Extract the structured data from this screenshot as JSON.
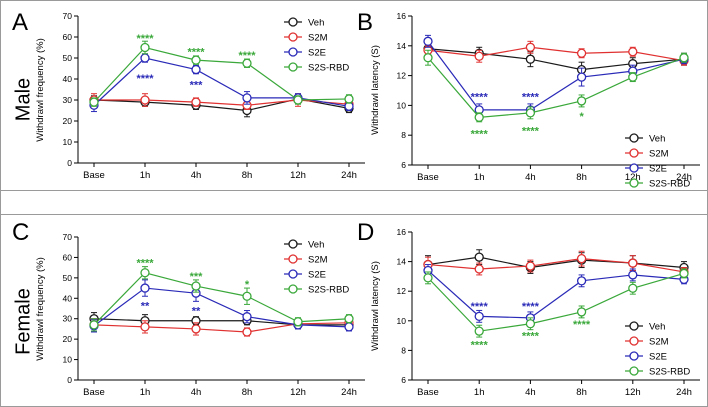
{
  "rows": [
    "Male",
    "Female"
  ],
  "chart_data": [
    {
      "panel": "A",
      "type": "line",
      "categories": [
        "Base",
        "1h",
        "4h",
        "8h",
        "12h",
        "24h"
      ],
      "ylabel": "Withdrawl frequency (%)",
      "ylim": [
        0,
        70
      ],
      "yticks": [
        0,
        10,
        20,
        30,
        40,
        50,
        60,
        70
      ],
      "legend_position": "top-right",
      "series": [
        {
          "name": "Veh",
          "color": "#1a1a1a",
          "values": [
            30,
            29,
            27.5,
            25,
            30.5,
            26
          ],
          "errors": [
            2,
            2,
            2,
            3,
            2,
            2
          ]
        },
        {
          "name": "S2M",
          "color": "#e03030",
          "values": [
            30,
            30,
            29,
            27.5,
            30,
            28
          ],
          "errors": [
            3,
            3,
            2,
            2,
            3,
            2
          ]
        },
        {
          "name": "S2E",
          "color": "#2a2ab8",
          "values": [
            27.5,
            50,
            44.5,
            31,
            31,
            27
          ],
          "errors": [
            3,
            2,
            2,
            3,
            2,
            2
          ]
        },
        {
          "name": "S2S-RBD",
          "color": "#3aa83a",
          "values": [
            29,
            55,
            49,
            47.5,
            30,
            30.5
          ],
          "errors": [
            2,
            3,
            2,
            2,
            2,
            2
          ]
        }
      ],
      "annotations": [
        {
          "text": "****",
          "cat": "1h",
          "value": 59.5,
          "series": "S2S-RBD"
        },
        {
          "text": "****",
          "cat": "1h",
          "value": 40.5,
          "series": "S2E"
        },
        {
          "text": "****",
          "cat": "4h",
          "value": 53,
          "series": "S2S-RBD"
        },
        {
          "text": "***",
          "cat": "4h",
          "value": 37.5,
          "series": "S2E"
        },
        {
          "text": "****",
          "cat": "8h",
          "value": 51.5,
          "series": "S2S-RBD"
        }
      ]
    },
    {
      "panel": "B",
      "type": "line",
      "categories": [
        "Base",
        "1h",
        "4h",
        "8h",
        "12h",
        "24h"
      ],
      "ylabel": "Withdrawl latency (S)",
      "ylim": [
        6,
        16
      ],
      "yticks": [
        6,
        8,
        10,
        12,
        14,
        16
      ],
      "legend_position": "bottom-right",
      "series": [
        {
          "name": "Veh",
          "color": "#1a1a1a",
          "values": [
            13.8,
            13.5,
            13.1,
            12.4,
            12.8,
            13.1
          ],
          "errors": [
            0.3,
            0.4,
            0.5,
            0.5,
            0.4,
            0.4
          ]
        },
        {
          "name": "S2M",
          "color": "#e03030",
          "values": [
            13.7,
            13.3,
            13.9,
            13.5,
            13.6,
            13.0
          ],
          "errors": [
            0.3,
            0.4,
            0.4,
            0.3,
            0.3,
            0.3
          ]
        },
        {
          "name": "S2E",
          "color": "#2a2ab8",
          "values": [
            14.3,
            9.7,
            9.7,
            11.9,
            12.3,
            13.1
          ],
          "errors": [
            0.4,
            0.4,
            0.4,
            0.6,
            0.4,
            0.3
          ]
        },
        {
          "name": "S2S-RBD",
          "color": "#3aa83a",
          "values": [
            13.2,
            9.2,
            9.5,
            10.3,
            11.9,
            13.2
          ],
          "errors": [
            0.5,
            0.3,
            0.4,
            0.4,
            0.3,
            0.3
          ]
        }
      ],
      "annotations": [
        {
          "text": "****",
          "cat": "1h",
          "value": 10.6,
          "series": "S2E"
        },
        {
          "text": "****",
          "cat": "1h",
          "value": 8.1,
          "series": "S2S-RBD"
        },
        {
          "text": "****",
          "cat": "4h",
          "value": 10.6,
          "series": "S2E"
        },
        {
          "text": "****",
          "cat": "4h",
          "value": 8.3,
          "series": "S2S-RBD"
        },
        {
          "text": "*",
          "cat": "8h",
          "value": 9.3,
          "series": "S2S-RBD"
        }
      ]
    },
    {
      "panel": "C",
      "type": "line",
      "categories": [
        "Base",
        "1h",
        "4h",
        "8h",
        "12h",
        "24h"
      ],
      "ylabel": "Withdrawl frequency (%)",
      "ylim": [
        0,
        70
      ],
      "yticks": [
        0,
        10,
        20,
        30,
        40,
        50,
        60,
        70
      ],
      "legend_position": "top-right",
      "series": [
        {
          "name": "Veh",
          "color": "#1a1a1a",
          "values": [
            30,
            29,
            29,
            29,
            27,
            27
          ],
          "errors": [
            3,
            3,
            2,
            2,
            2,
            2
          ]
        },
        {
          "name": "S2M",
          "color": "#e03030",
          "values": [
            27,
            26,
            25,
            23.5,
            27.5,
            28
          ],
          "errors": [
            3,
            3,
            3,
            2,
            2,
            2
          ]
        },
        {
          "name": "S2E",
          "color": "#2a2ab8",
          "values": [
            26.5,
            45,
            42.5,
            31,
            27,
            26
          ],
          "errors": [
            3,
            4,
            4,
            3,
            2,
            2
          ]
        },
        {
          "name": "S2S-RBD",
          "color": "#3aa83a",
          "values": [
            27,
            52.5,
            46,
            41,
            28.5,
            30
          ],
          "errors": [
            3,
            3,
            3,
            4,
            2,
            2
          ]
        }
      ],
      "annotations": [
        {
          "text": "****",
          "cat": "1h",
          "value": 57.5,
          "series": "S2S-RBD"
        },
        {
          "text": "**",
          "cat": "1h",
          "value": 36.5,
          "series": "S2E"
        },
        {
          "text": "***",
          "cat": "4h",
          "value": 51,
          "series": "S2S-RBD"
        },
        {
          "text": "**",
          "cat": "4h",
          "value": 34,
          "series": "S2E"
        },
        {
          "text": "*",
          "cat": "8h",
          "value": 47,
          "series": "S2S-RBD"
        }
      ]
    },
    {
      "panel": "D",
      "type": "line",
      "categories": [
        "Base",
        "1h",
        "4h",
        "8h",
        "12h",
        "24h"
      ],
      "ylabel": "Withdrawl latency (S)",
      "ylim": [
        6,
        16
      ],
      "yticks": [
        6,
        8,
        10,
        12,
        14,
        16
      ],
      "legend_position": "bottom-right",
      "series": [
        {
          "name": "Veh",
          "color": "#1a1a1a",
          "values": [
            13.8,
            14.3,
            13.6,
            14.1,
            13.9,
            13.6
          ],
          "errors": [
            0.6,
            0.5,
            0.4,
            0.5,
            0.5,
            0.4
          ]
        },
        {
          "name": "S2M",
          "color": "#e03030",
          "values": [
            13.8,
            13.5,
            13.7,
            14.2,
            13.9,
            13.3
          ],
          "errors": [
            0.5,
            0.4,
            0.4,
            0.5,
            0.5,
            0.3
          ]
        },
        {
          "name": "S2E",
          "color": "#2a2ab8",
          "values": [
            13.4,
            10.3,
            10.2,
            12.7,
            13.1,
            12.8
          ],
          "errors": [
            0.4,
            0.4,
            0.4,
            0.4,
            0.4,
            0.3
          ]
        },
        {
          "name": "S2S-RBD",
          "color": "#3aa83a",
          "values": [
            12.9,
            9.3,
            9.8,
            10.6,
            12.2,
            13.2
          ],
          "errors": [
            0.4,
            0.4,
            0.4,
            0.4,
            0.4,
            0.3
          ]
        }
      ],
      "annotations": [
        {
          "text": "****",
          "cat": "1h",
          "value": 11.0,
          "series": "S2E"
        },
        {
          "text": "****",
          "cat": "1h",
          "value": 8.4,
          "series": "S2S-RBD"
        },
        {
          "text": "****",
          "cat": "4h",
          "value": 11.0,
          "series": "S2E"
        },
        {
          "text": "****",
          "cat": "4h",
          "value": 9.0,
          "series": "S2S-RBD"
        },
        {
          "text": "****",
          "cat": "8h",
          "value": 9.8,
          "series": "S2S-RBD"
        }
      ]
    }
  ]
}
